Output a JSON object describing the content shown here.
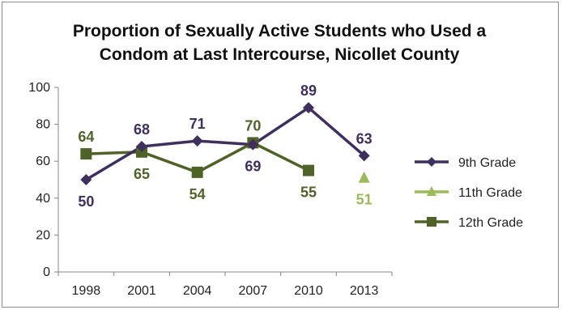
{
  "chart_data": {
    "type": "line",
    "title_line1": "Proportion of Sexually Active Students who Used a",
    "title_line2": "Condom at Last Intercourse, Nicollet County",
    "categories": [
      "1998",
      "2001",
      "2004",
      "2007",
      "2010",
      "2013"
    ],
    "ylim": [
      0,
      100
    ],
    "yticks": [
      0,
      20,
      40,
      60,
      80,
      100
    ],
    "grid": false,
    "legend_position": "right",
    "series": [
      {
        "name": "9th Grade",
        "values": [
          50,
          68,
          71,
          69,
          89,
          63
        ],
        "labels": [
          "50",
          "68",
          "71",
          "69",
          "89",
          "63"
        ],
        "color": "#3f2f5f",
        "marker": "diamond"
      },
      {
        "name": "11th Grade",
        "values": [
          null,
          null,
          null,
          null,
          null,
          51
        ],
        "labels": [
          null,
          null,
          null,
          null,
          null,
          "51"
        ],
        "color": "#9bbb59",
        "marker": "triangle"
      },
      {
        "name": "12th Grade",
        "values": [
          64,
          65,
          54,
          70,
          55,
          null
        ],
        "labels": [
          "64",
          "65",
          "54",
          "70",
          "55",
          null
        ],
        "color": "#4f6228",
        "marker": "square"
      }
    ]
  }
}
